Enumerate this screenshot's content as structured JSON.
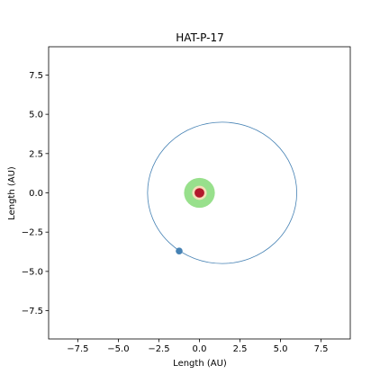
{
  "chart_data": {
    "type": "scatter",
    "title": "HAT-P-17",
    "xlabel": "Length (AU)",
    "ylabel": "Length (AU)",
    "xlim": [
      -9.3,
      9.3
    ],
    "ylim": [
      -9.3,
      9.3
    ],
    "x_ticks": [
      -7.5,
      -5.0,
      -2.5,
      0.0,
      2.5,
      5.0,
      7.5
    ],
    "y_ticks": [
      -7.5,
      -5.0,
      -2.5,
      0.0,
      2.5,
      5.0,
      7.5
    ],
    "x_tick_labels": [
      "−7.5",
      "−5.0",
      "−2.5",
      "0.0",
      "2.5",
      "5.0",
      "7.5"
    ],
    "y_tick_labels": [
      "−7.5",
      "−5.0",
      "−2.5",
      "0.0",
      "2.5",
      "5.0",
      "7.5"
    ],
    "grid": false,
    "habitable_zone": {
      "inner_radius": 0.45,
      "outer_radius": 0.95,
      "color": "#98e08c"
    },
    "inner_zone": {
      "radius": 0.45,
      "color": "#f5deb8"
    },
    "star": {
      "x": 0.0,
      "y": 0.0,
      "radius": 0.3,
      "color": "#b2182b"
    },
    "orbit": {
      "center_x": 1.4,
      "center_y": 0.0,
      "semi_major": 4.6,
      "semi_minor": 4.5,
      "color": "#4682b4"
    },
    "planet": {
      "x": -1.25,
      "y": -3.7,
      "color": "#4682b4"
    }
  }
}
